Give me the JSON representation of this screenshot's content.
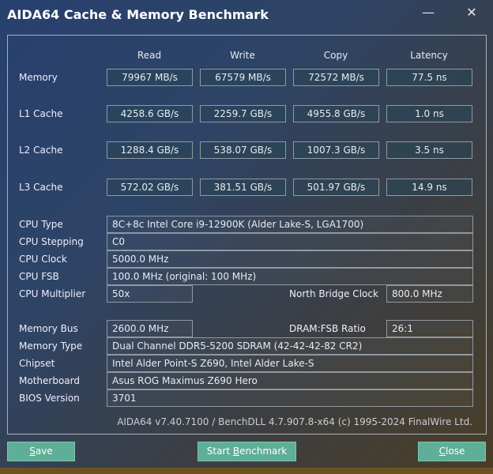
{
  "window": {
    "title": "AIDA64 Cache & Memory Benchmark",
    "minimize_icon": "minimize-icon",
    "close_icon": "close-icon"
  },
  "columns": [
    "Read",
    "Write",
    "Copy",
    "Latency"
  ],
  "bench_rows": [
    {
      "label": "Memory",
      "values": [
        "79967 MB/s",
        "67579 MB/s",
        "72572 MB/s",
        "77.5 ns"
      ]
    },
    {
      "label": "L1 Cache",
      "values": [
        "4258.6 GB/s",
        "2259.7 GB/s",
        "4955.8 GB/s",
        "1.0 ns"
      ]
    },
    {
      "label": "L2 Cache",
      "values": [
        "1288.4 GB/s",
        "538.07 GB/s",
        "1007.3 GB/s",
        "3.5 ns"
      ]
    },
    {
      "label": "L3 Cache",
      "values": [
        "572.02 GB/s",
        "381.51 GB/s",
        "501.97 GB/s",
        "14.9 ns"
      ]
    }
  ],
  "info": {
    "cpu_type": {
      "label": "CPU Type",
      "value": "8C+8c Intel Core i9-12900K  (Alder Lake-S, LGA1700)"
    },
    "cpu_stepping": {
      "label": "CPU Stepping",
      "value": "C0"
    },
    "cpu_clock": {
      "label": "CPU Clock",
      "value": "5000.0 MHz"
    },
    "cpu_fsb": {
      "label": "CPU FSB",
      "value": "100.0 MHz  (original: 100 MHz)"
    },
    "cpu_multiplier": {
      "label": "CPU Multiplier",
      "value": "50x"
    },
    "nb_clock": {
      "label": "North Bridge Clock",
      "value": "800.0 MHz"
    },
    "memory_bus": {
      "label": "Memory Bus",
      "value": "2600.0 MHz"
    },
    "dram_fsb": {
      "label": "DRAM:FSB Ratio",
      "value": "26:1"
    },
    "memory_type": {
      "label": "Memory Type",
      "value": "Dual Channel DDR5-5200 SDRAM  (42-42-42-82 CR2)"
    },
    "chipset": {
      "label": "Chipset",
      "value": "Intel Alder Point-S Z690, Intel Alder Lake-S"
    },
    "motherboard": {
      "label": "Motherboard",
      "value": "Asus ROG Maximus Z690 Hero"
    },
    "bios": {
      "label": "BIOS Version",
      "value": "3701"
    }
  },
  "footer": "AIDA64 v7.40.7100 / BenchDLL 4.7.907.8-x64  (c) 1995-2024 FinalWire Ltd.",
  "buttons": {
    "save_u": "S",
    "save_rest": "ave",
    "start_pre": "Start ",
    "start_u": "B",
    "start_rest": "enchmark",
    "close_u": "C",
    "close_rest": "lose"
  }
}
